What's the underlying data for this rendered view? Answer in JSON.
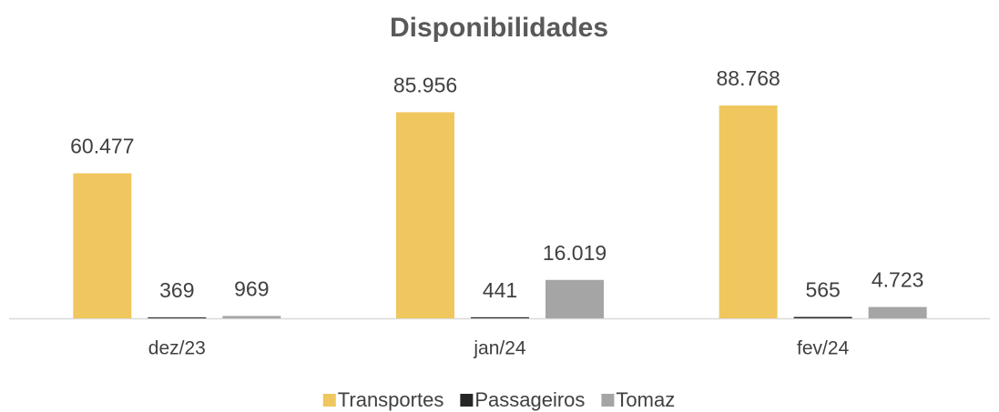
{
  "chart_data": {
    "type": "bar",
    "title": "Disponibilidades",
    "categories": [
      "dez/23",
      "jan/24",
      "fev/24"
    ],
    "series": [
      {
        "name": "Transportes",
        "color": "#f0c75e",
        "values": [
          60477,
          85956,
          88768
        ],
        "value_labels": [
          "60.477",
          "85.956",
          "88.768"
        ]
      },
      {
        "name": "Passageiros",
        "color": "#262626",
        "values": [
          369,
          441,
          565
        ],
        "value_labels": [
          "369",
          "441",
          "565"
        ]
      },
      {
        "name": "Tomaz",
        "color": "#a5a5a5",
        "values": [
          969,
          16019,
          4723
        ],
        "value_labels": [
          "969",
          "16.019",
          "4.723"
        ]
      }
    ],
    "legend": "bottom"
  }
}
